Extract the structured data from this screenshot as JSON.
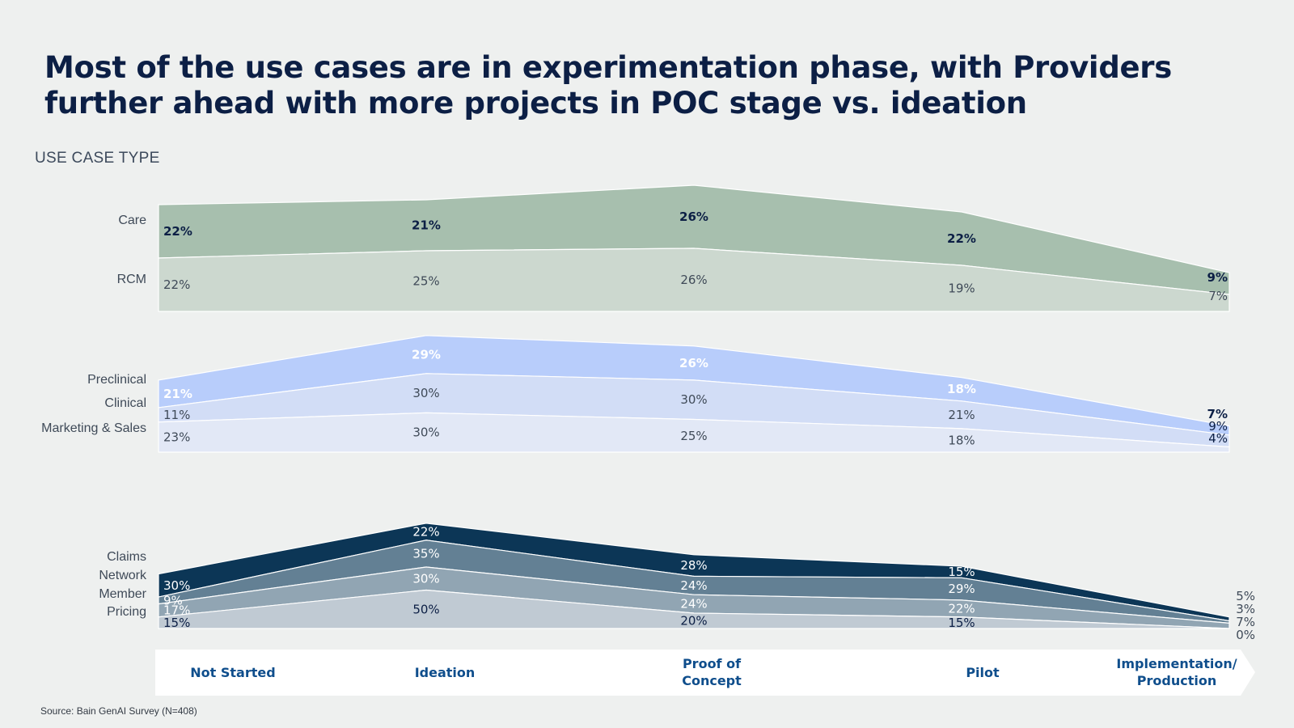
{
  "title": "Most of the use cases are in experimentation phase, with Providers further ahead with more projects in POC stage vs. ideation",
  "section_label": "USE CASE TYPE",
  "source": "Source: Bain GenAI Survey (N=408)",
  "stages": [
    "Not Started",
    "Ideation",
    "Proof of\nConcept",
    "Pilot",
    "Implementation/\nProduction"
  ],
  "colors": {
    "care": "#a7bfae",
    "rcm": "#ccd8cf",
    "preclinical": "#b8cdfb",
    "clinical": "#d2ddf6",
    "marketing": "#e2e8f6",
    "claims": "#0c3656",
    "network": "#638094",
    "member": "#91a5b3",
    "pricing": "#c0cad3",
    "stage_text": "#0f4e8c",
    "band": "#ffffff"
  },
  "chart_data": {
    "type": "area",
    "x": [
      "Not Started",
      "Ideation",
      "Proof of Concept",
      "Pilot",
      "Implementation/Production"
    ],
    "groups": [
      {
        "series": [
          {
            "name": "Care",
            "label": "Care",
            "values": [
              22,
              21,
              26,
              22,
              9
            ],
            "labels": [
              "22%",
              "21%",
              "26%",
              "22%",
              "9%"
            ],
            "color_key": "care",
            "text_color": "#0c1f45",
            "bold": true
          },
          {
            "name": "RCM",
            "label": "RCM",
            "values": [
              22,
              25,
              26,
              19,
              7
            ],
            "labels": [
              "22%",
              "25%",
              "26%",
              "19%",
              "7%"
            ],
            "color_key": "rcm",
            "text_color": "#3f4a58",
            "bold": false
          }
        ]
      },
      {
        "series": [
          {
            "name": "Preclinical",
            "label": "Preclinical",
            "values": [
              21,
              29,
              26,
              18,
              7
            ],
            "labels": [
              "21%",
              "29%",
              "26%",
              "18%",
              "7%"
            ],
            "color_key": "preclinical",
            "text_color": "#ffffff",
            "bold": true
          },
          {
            "name": "Clinical",
            "label": "Clinical",
            "values": [
              11,
              30,
              30,
              21,
              9
            ],
            "labels": [
              "11%",
              "30%",
              "30%",
              "21%",
              "9%"
            ],
            "color_key": "clinical",
            "text_color": "#3f4a58",
            "bold": false
          },
          {
            "name": "Marketing & Sales",
            "label": "Marketing & Sales",
            "values": [
              23,
              30,
              25,
              18,
              4
            ],
            "labels": [
              "23%",
              "30%",
              "25%",
              "18%",
              "4%"
            ],
            "color_key": "marketing",
            "text_color": "#3f4a58",
            "bold": false
          }
        ]
      },
      {
        "series": [
          {
            "name": "Claims",
            "label": "Claims",
            "values": [
              30,
              22,
              28,
              15,
              5
            ],
            "labels": [
              "30%",
              "22%",
              "28%",
              "15%",
              "5%"
            ],
            "color_key": "claims",
            "text_color": "#ffffff",
            "bold": false
          },
          {
            "name": "Network",
            "label": "Network",
            "values": [
              9,
              35,
              24,
              29,
              3
            ],
            "labels": [
              "9%",
              "35%",
              "24%",
              "29%",
              "3%"
            ],
            "color_key": "network",
            "text_color": "#ffffff",
            "bold": false
          },
          {
            "name": "Member",
            "label": "Member",
            "values": [
              17,
              30,
              24,
              22,
              7
            ],
            "labels": [
              "17%",
              "30%",
              "24%",
              "22%",
              "7%"
            ],
            "color_key": "member",
            "text_color": "#ffffff",
            "bold": false
          },
          {
            "name": "Pricing",
            "label": "Pricing",
            "values": [
              15,
              50,
              20,
              15,
              0
            ],
            "labels": [
              "15%",
              "50%",
              "20%",
              "15%",
              "0%"
            ],
            "color_key": "pricing",
            "text_color": "#0c1f45",
            "bold": false
          }
        ]
      }
    ]
  }
}
